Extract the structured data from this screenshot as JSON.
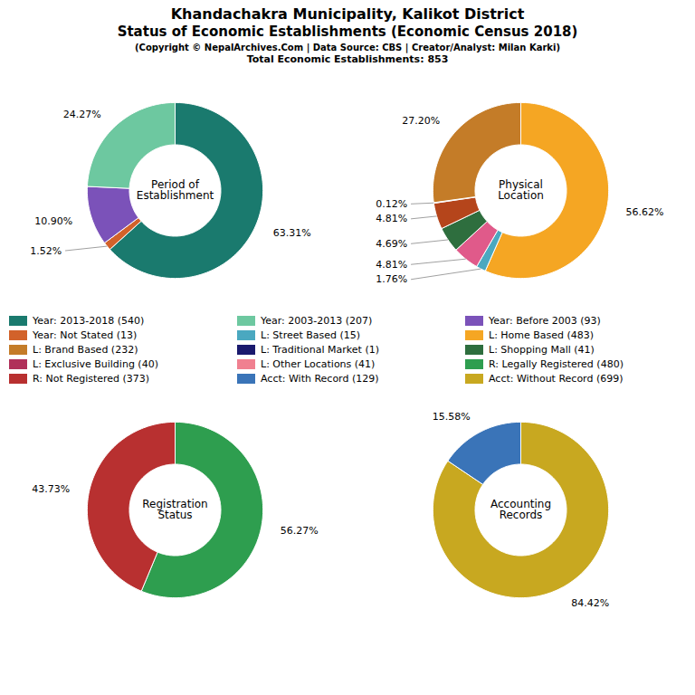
{
  "title": [
    "Khandachakra Municipality, Kalikot District",
    "Status of Economic Establishments (Economic Census 2018)"
  ],
  "subtitle": [
    "(Copyright © NepalArchives.Com | Data Source: CBS | Creator/Analyst: Milan Karki)",
    "Total Economic Establishments: 853"
  ],
  "series": [
    {
      "name": "Year: 2013-2018 (540)",
      "color": "#1a7a6e"
    },
    {
      "name": "Year: 2003-2013 (207)",
      "color": "#6dc8a0"
    },
    {
      "name": "Year: Before 2003 (93)",
      "color": "#7b52b9"
    },
    {
      "name": "Year: Not Stated (13)",
      "color": "#d2622a"
    },
    {
      "name": "L: Street Based (15)",
      "color": "#4aa8c0"
    },
    {
      "name": "L: Home Based (483)",
      "color": "#f5a623"
    },
    {
      "name": "L: Brand Based (232)",
      "color": "#c47c28"
    },
    {
      "name": "L: Traditional Market (1)",
      "color": "#1a1a6e"
    },
    {
      "name": "L: Shopping Mall (41)",
      "color": "#2e6e3e"
    },
    {
      "name": "L: Exclusive Building (40)",
      "color": "#b0305a"
    },
    {
      "name": "L: Other Locations (41)",
      "color": "#f08090"
    },
    {
      "name": "R: Legally Registered (480)",
      "color": "#2e9e4f"
    },
    {
      "name": "R: Not Registered (373)",
      "color": "#b83030"
    },
    {
      "name": "Acct: With Record (129)",
      "color": "#3a74b8"
    },
    {
      "name": "Acct: Without Record (699)",
      "color": "#c8a820"
    }
  ],
  "chart_data": [
    {
      "type": "pie",
      "title": "Period of\nEstablishment",
      "values": [
        63.31,
        1.52,
        10.9,
        24.27
      ],
      "value_labels": [
        "63.31%",
        "1.52%",
        "10.90%",
        "24.27%"
      ],
      "colors": [
        "#1a7a6e",
        "#d2622a",
        "#7b52b9",
        "#6dc8a0"
      ],
      "data_labels": true
    },
    {
      "type": "pie",
      "title": "Physical\nLocation",
      "values": [
        56.62,
        1.76,
        4.81,
        4.69,
        4.81,
        0.12,
        27.2
      ],
      "value_labels": [
        "56.62%",
        "1.76%",
        "4.81%",
        "4.69%",
        "4.81%",
        "0.12%",
        "27.20%"
      ],
      "colors": [
        "#f5a623",
        "#4aa8c0",
        "#e05a8a",
        "#2e6e3e",
        "#b5451b",
        "#1a1a6e",
        "#c47c28"
      ],
      "data_labels": true
    },
    {
      "type": "pie",
      "title": "Registration\nStatus",
      "values": [
        56.27,
        43.73
      ],
      "value_labels": [
        "56.27%",
        "43.73%"
      ],
      "colors": [
        "#2e9e4f",
        "#b83030"
      ],
      "data_labels": true
    },
    {
      "type": "pie",
      "title": "Accounting\nRecords",
      "values": [
        84.42,
        15.58
      ],
      "value_labels": [
        "84.42%",
        "15.58%"
      ],
      "colors": [
        "#c8a820",
        "#3a74b8"
      ],
      "data_labels": true
    }
  ]
}
